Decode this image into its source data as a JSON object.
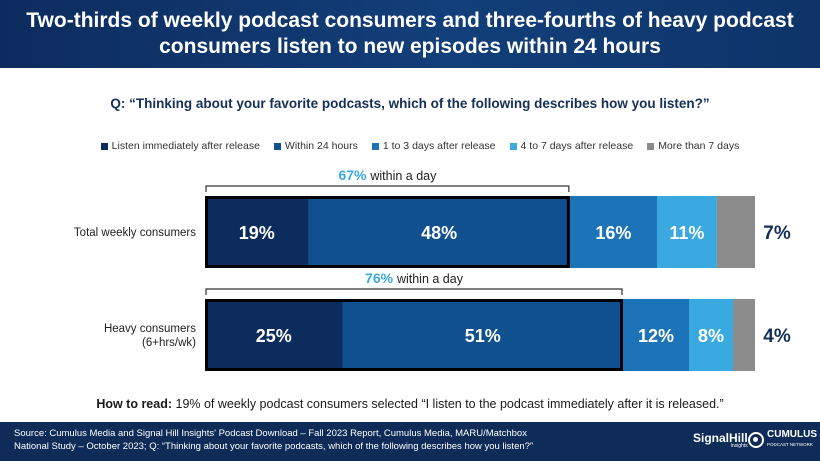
{
  "header": {
    "title": "Two-thirds of weekly podcast consumers and three-fourths of heavy podcast consumers listen to new episodes within 24 hours"
  },
  "question": "Q: “Thinking about your favorite podcasts, which of the following describes how you listen?”",
  "colors": {
    "immediately": "#0c2c5e",
    "within_24": "#11508f",
    "one_to_three": "#1d73b8",
    "four_to_seven": "#3aa9df",
    "more_than_7": "#8c8c8c",
    "label_dark": "#14305a",
    "highlight": "#3aa9df"
  },
  "chart_data": {
    "type": "bar",
    "orientation": "horizontal-stacked",
    "categories": [
      "Total weekly consumers",
      "Heavy consumers (6+hrs/wk)"
    ],
    "series": [
      {
        "name": "Listen immediately after release",
        "values": [
          19,
          25
        ],
        "labels": [
          "19%",
          "25%"
        ]
      },
      {
        "name": "Within 24 hours",
        "values": [
          48,
          51
        ],
        "labels": [
          "48%",
          "51%"
        ]
      },
      {
        "name": "1 to 3 days after release",
        "values": [
          16,
          12
        ],
        "labels": [
          "16%",
          "12%"
        ]
      },
      {
        "name": "4 to 7 days after release",
        "values": [
          11,
          8
        ],
        "labels": [
          "11%",
          "8%"
        ]
      },
      {
        "name": "More than 7 days",
        "values": [
          7,
          4
        ],
        "labels": [
          "7%",
          "4%"
        ]
      }
    ],
    "annotations": [
      {
        "percent": "67%",
        "text": "within a day"
      },
      {
        "percent": "76%",
        "text": "within a day"
      }
    ],
    "legend_position": "top",
    "category_label_lines": [
      [
        "Total weekly consumers"
      ],
      [
        "Heavy consumers",
        "(6+hrs/wk)"
      ]
    ]
  },
  "howto": {
    "label": "How to read:",
    "text": " 19% of weekly podcast consumers selected “I listen to the podcast immediately after it is released.”"
  },
  "footer": {
    "source_line1": "Source: Cumulus Media and Signal Hill Insights' Podcast Download – Fall 2023 Report, Cumulus Media, MARU/Matchbox",
    "source_line2": "National Study – October 2023; Q: “Thinking about your favorite podcasts, which of the following describes how you listen?”",
    "logo_signalhill": "SignalHill",
    "logo_signalhill_sub": "Insights",
    "logo_cumulus": "CUMULUS",
    "logo_cumulus_sub": "PODCAST NETWORK"
  }
}
